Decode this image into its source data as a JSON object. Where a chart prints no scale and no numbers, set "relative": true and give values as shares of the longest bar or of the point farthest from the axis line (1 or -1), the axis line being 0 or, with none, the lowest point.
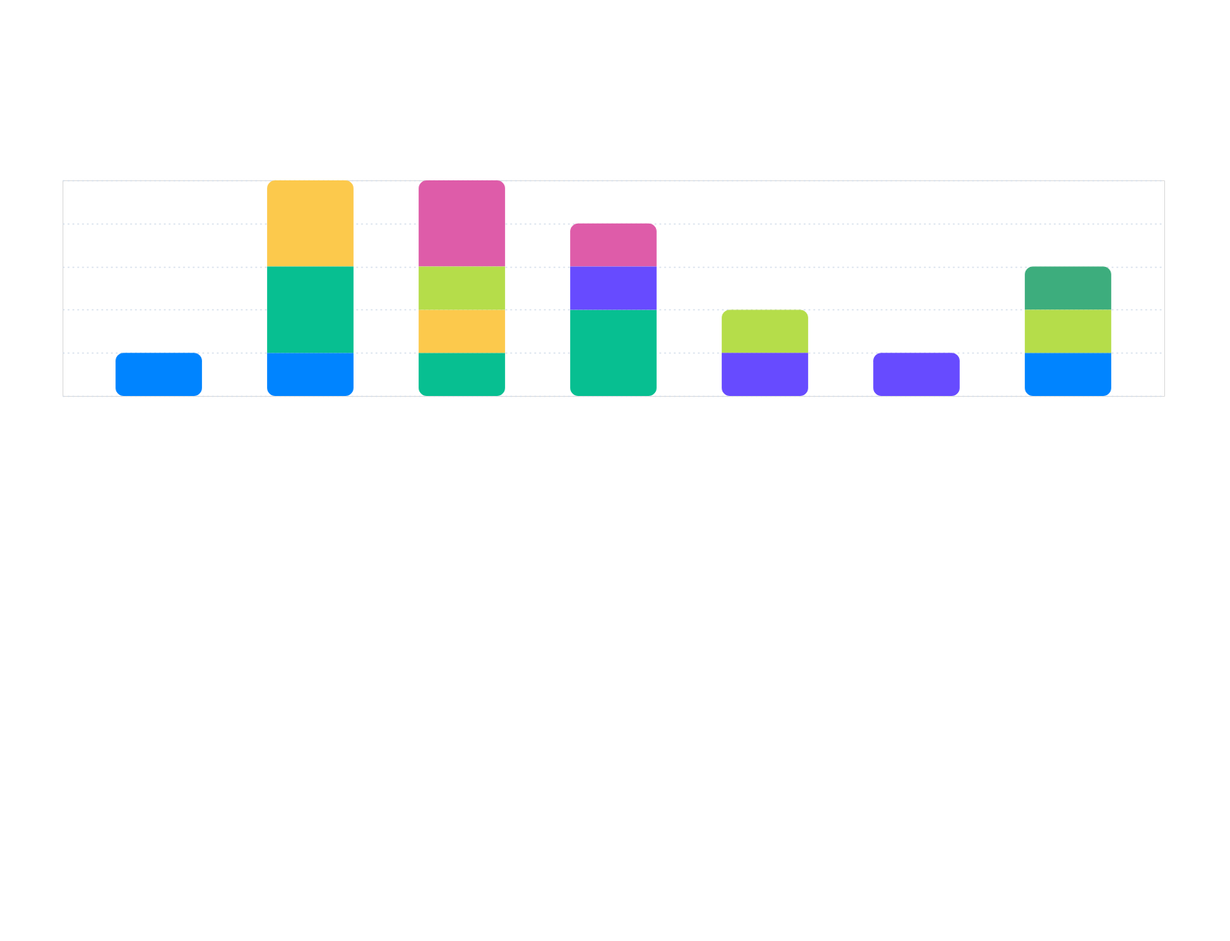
{
  "chart_data": {
    "type": "bar",
    "stacked": true,
    "relative": true,
    "categories": [
      null,
      null,
      null,
      null,
      null,
      null,
      null
    ],
    "series": [
      {
        "color": "#0084ff",
        "values": [
          0.2,
          0.2,
          null,
          null,
          null,
          null,
          0.2
        ]
      },
      {
        "color": "#07bf91",
        "values": [
          null,
          0.4,
          0.2,
          0.4,
          null,
          null,
          null
        ]
      },
      {
        "color": "#fcc94c",
        "values": [
          null,
          0.4,
          0.2,
          null,
          null,
          null,
          null
        ]
      },
      {
        "color": "#674bff",
        "values": [
          null,
          null,
          null,
          0.2,
          0.2,
          0.2,
          null
        ]
      },
      {
        "color": "#b5dd4a",
        "values": [
          null,
          null,
          0.2,
          null,
          0.2,
          null,
          0.2
        ]
      },
      {
        "color": "#de5ca9",
        "values": [
          null,
          null,
          0.4,
          0.2,
          null,
          null,
          null
        ]
      },
      {
        "color": "#3dad7d",
        "values": [
          null,
          null,
          null,
          null,
          null,
          null,
          0.2
        ]
      }
    ],
    "grid": "y"
  }
}
